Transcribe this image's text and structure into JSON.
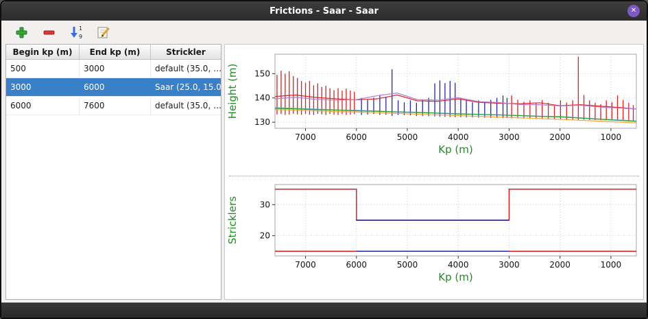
{
  "window": {
    "title": "Frictions - Saar - Saar",
    "close_glyph": "✕"
  },
  "toolbar": {
    "buttons": [
      {
        "name": "add"
      },
      {
        "name": "remove"
      },
      {
        "name": "sort"
      },
      {
        "name": "edit"
      }
    ],
    "sort_digits": [
      "1",
      "9"
    ]
  },
  "table": {
    "headers": [
      "Begin kp (m)",
      "End kp (m)",
      "Strickler"
    ],
    "rows": [
      {
        "begin": "500",
        "end": "3000",
        "strickler": "default (35.0, …",
        "selected": false
      },
      {
        "begin": "3000",
        "end": "6000",
        "strickler": "Saar (25.0, 15.0)",
        "selected": true
      },
      {
        "begin": "6000",
        "end": "7600",
        "strickler": "default (35.0, …",
        "selected": false
      }
    ]
  },
  "chart_data": [
    {
      "name": "height-profile-chart",
      "type": "line",
      "title": "",
      "xlabel": "Kp (m)",
      "ylabel": "Height (m)",
      "axis_label_color": "#1e8c1e",
      "xlim": [
        7600,
        500
      ],
      "ylim": [
        127.5,
        158
      ],
      "xticks": [
        7000,
        6000,
        5000,
        4000,
        3000,
        2000,
        1000
      ],
      "yticks": [
        130,
        140,
        150
      ],
      "grid": true,
      "bar_groups": [
        {
          "name": "section-extent-default-upstream",
          "color": "#dd1c1c",
          "bars": [
            [
              7560,
              133.2,
              149.5
            ],
            [
              7480,
              133.4,
              151.2
            ],
            [
              7400,
              133.0,
              150.0
            ],
            [
              7320,
              133.1,
              151.0
            ],
            [
              7240,
              133.5,
              149.0
            ],
            [
              7160,
              133.2,
              148.2
            ],
            [
              7080,
              133.0,
              147.0
            ],
            [
              7000,
              133.4,
              146.2
            ],
            [
              6920,
              133.1,
              147.0
            ],
            [
              6840,
              133.0,
              145.2
            ],
            [
              6760,
              133.5,
              146.0
            ],
            [
              6680,
              133.2,
              144.5
            ],
            [
              6600,
              133.0,
              145.0
            ],
            [
              6520,
              133.4,
              144.0
            ],
            [
              6440,
              133.1,
              143.2
            ],
            [
              6360,
              133.0,
              144.0
            ],
            [
              6280,
              133.3,
              143.0
            ],
            [
              6200,
              133.0,
              143.8
            ],
            [
              6120,
              133.1,
              143.0
            ],
            [
              6040,
              133.3,
              142.5
            ]
          ]
        },
        {
          "name": "section-extent-saar-selected",
          "color": "#2424a8",
          "bars": [
            [
              5900,
              133.0,
              140.0
            ],
            [
              5780,
              133.2,
              139.2
            ],
            [
              5660,
              133.4,
              140.1
            ],
            [
              5540,
              133.0,
              141.0
            ],
            [
              5420,
              133.1,
              140.2
            ],
            [
              5300,
              132.6,
              151.8
            ],
            [
              5180,
              133.0,
              139.0
            ],
            [
              5060,
              132.9,
              138.2
            ],
            [
              4940,
              132.8,
              139.0
            ],
            [
              4820,
              132.6,
              138.0
            ],
            [
              4700,
              132.6,
              139.2
            ],
            [
              4580,
              132.5,
              140.0
            ],
            [
              4460,
              132.4,
              146.0
            ],
            [
              4360,
              132.3,
              147.2
            ],
            [
              4260,
              132.2,
              146.1
            ],
            [
              4160,
              132.2,
              147.0
            ],
            [
              4060,
              132.1,
              146.2
            ],
            [
              3950,
              132.1,
              140.0
            ],
            [
              3840,
              132.0,
              139.0
            ],
            [
              3720,
              132.0,
              138.2
            ],
            [
              3600,
              131.9,
              139.0
            ],
            [
              3480,
              131.9,
              138.1
            ],
            [
              3360,
              131.8,
              139.2
            ],
            [
              3240,
              131.8,
              140.0
            ],
            [
              3120,
              131.7,
              141.0
            ],
            [
              3040,
              131.7,
              140.0
            ]
          ]
        },
        {
          "name": "section-extent-default-downstream",
          "color": "#dd1c1c",
          "bars": [
            [
              2950,
              131.6,
              141.0
            ],
            [
              2830,
              131.6,
              139.2
            ],
            [
              2710,
              131.5,
              138.4
            ],
            [
              2590,
              131.5,
              139.0
            ],
            [
              2470,
              131.4,
              138.0
            ],
            [
              2350,
              131.4,
              139.1
            ],
            [
              2230,
              131.3,
              138.0
            ],
            [
              2110,
              131.3,
              137.2
            ],
            [
              1990,
              131.2,
              139.0
            ],
            [
              1870,
              131.2,
              138.1
            ],
            [
              1750,
              131.1,
              139.0
            ],
            [
              1640,
              131.0,
              157.0
            ],
            [
              1530,
              131.0,
              141.2
            ],
            [
              1420,
              130.9,
              139.0
            ],
            [
              1310,
              130.9,
              138.0
            ],
            [
              1200,
              130.8,
              137.4
            ],
            [
              1090,
              130.8,
              139.0
            ],
            [
              980,
              130.7,
              138.2
            ],
            [
              870,
              130.7,
              141.0
            ],
            [
              760,
              130.6,
              139.2
            ],
            [
              650,
              130.6,
              138.0
            ],
            [
              560,
              130.5,
              137.0
            ]
          ]
        }
      ],
      "x": [
        7600,
        7200,
        6800,
        6400,
        6000,
        5600,
        5200,
        4800,
        4400,
        4000,
        3600,
        3200,
        2800,
        2400,
        2000,
        1600,
        1200,
        800,
        500
      ],
      "series": [
        {
          "name": "line-red",
          "color": "#d62728",
          "values": [
            140.6,
            141.2,
            140.2,
            139.6,
            139.2,
            139.6,
            141.2,
            138.8,
            138.6,
            139.6,
            138.2,
            137.8,
            137.6,
            138.0,
            136.8,
            137.2,
            136.6,
            136.0,
            135.4
          ]
        },
        {
          "name": "line-purple",
          "color": "#b57bd5",
          "values": [
            139.6,
            140.3,
            139.4,
            139.1,
            139.3,
            140.9,
            142.0,
            139.3,
            139.1,
            140.1,
            138.5,
            138.1,
            137.3,
            137.2,
            136.7,
            137.0,
            136.2,
            135.8,
            135.4
          ]
        },
        {
          "name": "line-cyan",
          "color": "#56b4d3",
          "values": [
            136.0,
            135.7,
            135.4,
            135.1,
            134.9,
            134.6,
            134.3,
            134.1,
            133.8,
            133.5,
            133.3,
            133.0,
            132.8,
            132.5,
            132.3,
            131.8,
            131.3,
            130.9,
            130.5
          ]
        },
        {
          "name": "line-green",
          "color": "#2ca02c",
          "values": [
            135.7,
            135.5,
            135.2,
            135.0,
            134.7,
            134.5,
            134.2,
            134.0,
            133.7,
            133.4,
            133.2,
            133.0,
            132.7,
            132.4,
            132.2,
            131.7,
            131.2,
            130.7,
            130.3
          ]
        },
        {
          "name": "line-orange",
          "color": "#f2a33c",
          "values": [
            135.2,
            135.0,
            134.7,
            134.4,
            134.2,
            133.9,
            133.6,
            133.3,
            133.0,
            132.7,
            132.4,
            132.1,
            131.8,
            131.5,
            131.2,
            130.8,
            130.4,
            130.0,
            129.7
          ]
        }
      ]
    },
    {
      "name": "stricklers-chart",
      "type": "line",
      "title": "",
      "xlabel": "Kp (m)",
      "ylabel": "Stricklers",
      "axis_label_color": "#1e8c1e",
      "xlim": [
        7600,
        500
      ],
      "ylim": [
        13.5,
        36.5
      ],
      "xticks": [
        7000,
        6000,
        5000,
        4000,
        3000,
        2000,
        1000
      ],
      "yticks": [
        20,
        30
      ],
      "grid": true,
      "steps": [
        {
          "name": "default-minor-bed",
          "color": "#dd1c1c",
          "points": [
            [
              7600,
              35
            ],
            [
              6000,
              35
            ],
            [
              6000,
              25
            ],
            [
              3000,
              25
            ],
            [
              3000,
              35
            ],
            [
              500,
              35
            ]
          ]
        },
        {
          "name": "default-major-bed",
          "color": "#dd1c1c",
          "points": [
            [
              7600,
              15
            ],
            [
              500,
              15
            ]
          ]
        },
        {
          "name": "saar-minor-bed",
          "color": "#2424a8",
          "points": [
            [
              6000,
              25
            ],
            [
              3000,
              25
            ]
          ]
        },
        {
          "name": "saar-major-bed",
          "color": "#2424a8",
          "points": [
            [
              6000,
              15
            ],
            [
              3000,
              15
            ]
          ]
        }
      ]
    }
  ],
  "statusbar": {
    "text": ""
  }
}
